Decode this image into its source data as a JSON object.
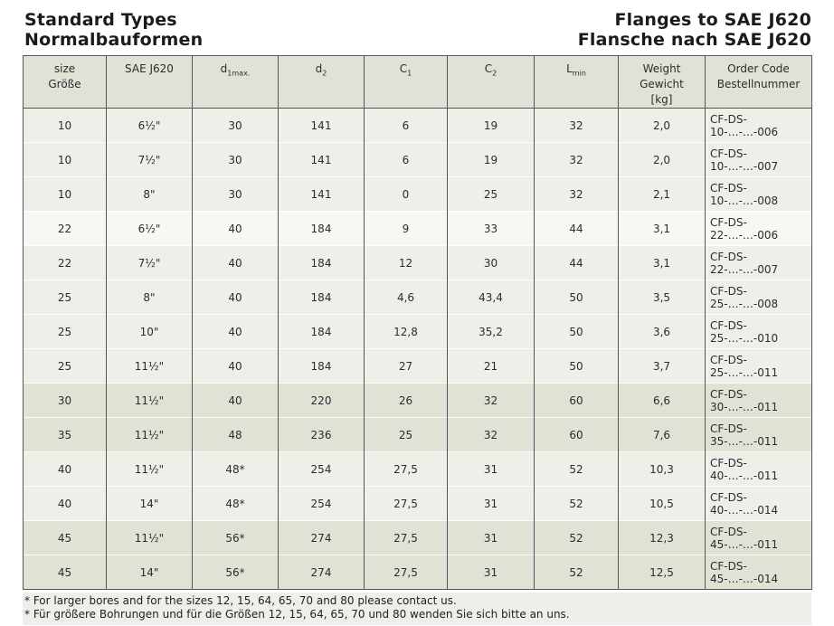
{
  "header": {
    "title_left_line1": "Standard Types",
    "title_left_line2": "Normalbauformen",
    "title_right_line1": "Flanges to SAE J620",
    "title_right_line2": "Flansche nach SAE J620"
  },
  "colors": {
    "page_bg": "#ffffff",
    "table_border": "#54565a",
    "header_cell_bg": "#dfe2d6",
    "band_light": "#edefe8",
    "band_white": "#f7f8f4",
    "band_dark": "#dfe2d5",
    "title_text": "#1b1b1d",
    "cell_text": "#2a2c2f"
  },
  "table": {
    "columns": [
      {
        "id": "size",
        "lines": [
          "size",
          "Größe"
        ]
      },
      {
        "id": "sae_j620",
        "lines": [
          "SAE J620"
        ]
      },
      {
        "id": "d1max",
        "base": "d",
        "sub": "1max."
      },
      {
        "id": "d2",
        "base": "d",
        "sub": "2"
      },
      {
        "id": "c1",
        "base": "C",
        "sub": "1"
      },
      {
        "id": "c2",
        "base": "C",
        "sub": "2"
      },
      {
        "id": "lmin",
        "base": "L",
        "sub": "min"
      },
      {
        "id": "weight",
        "lines": [
          "Weight",
          "Gewicht",
          "[kg]"
        ]
      },
      {
        "id": "order_code",
        "lines": [
          "Order Code",
          "Bestellnummer"
        ]
      }
    ],
    "rows": [
      {
        "band": "light",
        "cells": [
          "10",
          "6½\"",
          "30",
          "141",
          "6",
          "19",
          "32",
          "2,0",
          "CF-DS-10-…-…-006"
        ]
      },
      {
        "band": "light",
        "cells": [
          "10",
          "7½\"",
          "30",
          "141",
          "6",
          "19",
          "32",
          "2,0",
          "CF-DS-10-…-…-007"
        ]
      },
      {
        "band": "light",
        "cells": [
          "10",
          "8\"",
          "30",
          "141",
          "0",
          "25",
          "32",
          "2,1",
          "CF-DS-10-…-…-008"
        ]
      },
      {
        "band": "white",
        "cells": [
          "22",
          "6½\"",
          "40",
          "184",
          "9",
          "33",
          "44",
          "3,1",
          "CF-DS-22-…-…-006"
        ]
      },
      {
        "band": "light",
        "cells": [
          "22",
          "7½\"",
          "40",
          "184",
          "12",
          "30",
          "44",
          "3,1",
          "CF-DS-22-…-…-007"
        ]
      },
      {
        "band": "light",
        "cells": [
          "25",
          "8\"",
          "40",
          "184",
          "4,6",
          "43,4",
          "50",
          "3,5",
          "CF-DS-25-…-…-008"
        ]
      },
      {
        "band": "light",
        "cells": [
          "25",
          "10\"",
          "40",
          "184",
          "12,8",
          "35,2",
          "50",
          "3,6",
          "CF-DS-25-…-…-010"
        ]
      },
      {
        "band": "light",
        "cells": [
          "25",
          "11½\"",
          "40",
          "184",
          "27",
          "21",
          "50",
          "3,7",
          "CF-DS-25-…-…-011"
        ]
      },
      {
        "band": "dark",
        "cells": [
          "30",
          "11½\"",
          "40",
          "220",
          "26",
          "32",
          "60",
          "6,6",
          "CF-DS-30-…-…-011"
        ]
      },
      {
        "band": "dark",
        "cells": [
          "35",
          "11½\"",
          "48",
          "236",
          "25",
          "32",
          "60",
          "7,6",
          "CF-DS-35-…-…-011"
        ]
      },
      {
        "band": "light",
        "cells": [
          "40",
          "11½\"",
          "48*",
          "254",
          "27,5",
          "31",
          "52",
          "10,3",
          "CF-DS-40-…-…-011"
        ]
      },
      {
        "band": "light",
        "cells": [
          "40",
          "14\"",
          "48*",
          "254",
          "27,5",
          "31",
          "52",
          "10,5",
          "CF-DS-40-…-…-014"
        ]
      },
      {
        "band": "dark",
        "cells": [
          "45",
          "11½\"",
          "56*",
          "274",
          "27,5",
          "31",
          "52",
          "12,3",
          "CF-DS-45-…-…-011"
        ]
      },
      {
        "band": "dark",
        "cells": [
          "45",
          "14\"",
          "56*",
          "274",
          "27,5",
          "31",
          "52",
          "12,5",
          "CF-DS-45-…-…-014"
        ]
      }
    ]
  },
  "footnotes": [
    "* For larger bores and for the sizes 12, 15, 64, 65, 70 and 80 please contact us.",
    "* Für größere Bohrungen und für die Größen 12, 15, 64, 65, 70 und 80 wenden Sie sich bitte an uns."
  ]
}
